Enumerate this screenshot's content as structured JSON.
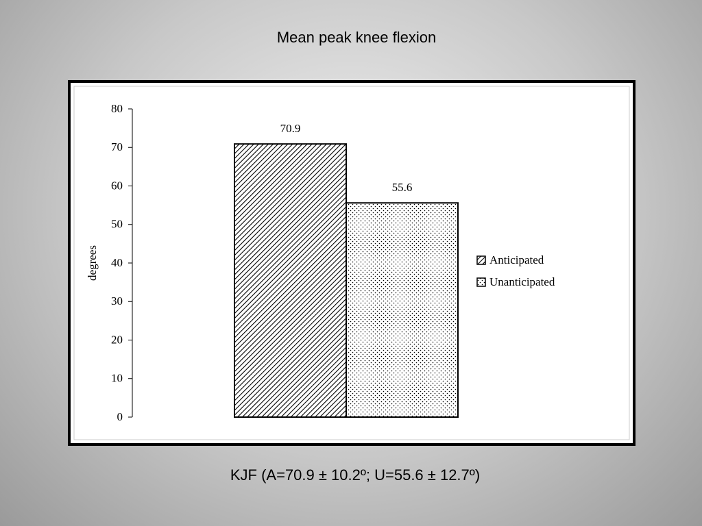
{
  "chart_data": {
    "type": "bar",
    "title": "Mean peak knee flexion",
    "ylabel": "degrees",
    "annotation": "KJF (A=70.9 ± 10.2º; U=55.6 ± 12.7º)",
    "categories": [
      null
    ],
    "series": [
      {
        "name": "Anticipated",
        "color": "#000000",
        "pattern": "hatch",
        "values": [
          70.9
        ]
      },
      {
        "name": "Unanticipated",
        "color": "#000000",
        "pattern": "dots",
        "values": [
          55.6
        ]
      }
    ],
    "ylim": [
      0,
      80
    ],
    "yticks": [
      0,
      10,
      20,
      30,
      40,
      50,
      60,
      70,
      80
    ],
    "legend": "right"
  }
}
